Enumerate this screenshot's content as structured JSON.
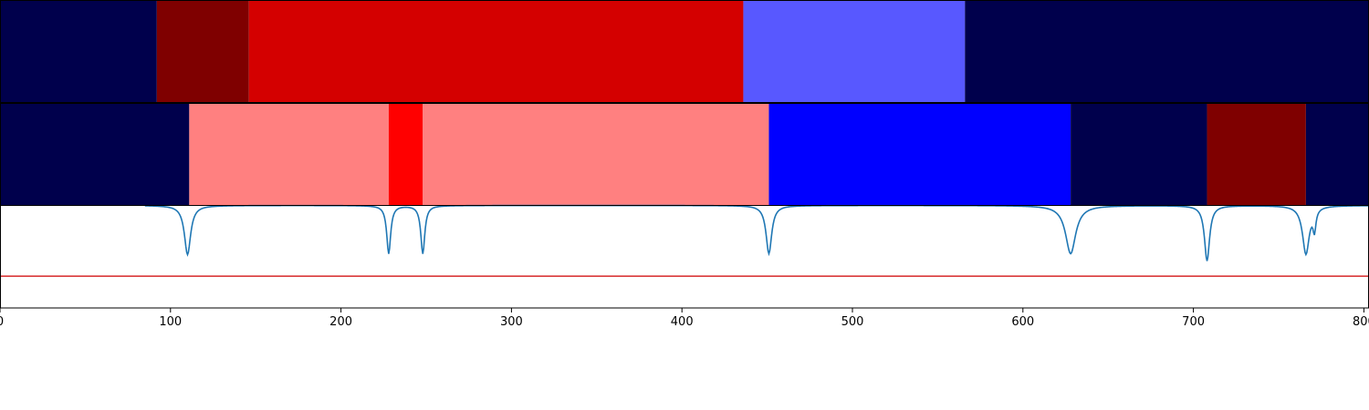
{
  "chart_data": {
    "type": "segment-timeline",
    "xlim": [
      0,
      803
    ],
    "x_ticks": [
      0,
      100,
      200,
      300,
      400,
      500,
      600,
      700,
      800
    ],
    "x_tick_labels": [
      "0",
      "100",
      "200",
      "300",
      "400",
      "500",
      "600",
      "700",
      "800"
    ],
    "panels": [
      {
        "kind": "segments",
        "segments": [
          {
            "start": 0,
            "end": 92,
            "color": "#00004c"
          },
          {
            "start": 92,
            "end": 146,
            "color": "#7f0000"
          },
          {
            "start": 146,
            "end": 436,
            "color": "#d40000"
          },
          {
            "start": 436,
            "end": 566,
            "color": "#5858ff"
          },
          {
            "start": 566,
            "end": 803,
            "color": "#00004c"
          }
        ]
      },
      {
        "kind": "segments",
        "segments": [
          {
            "start": 0,
            "end": 111,
            "color": "#00004c"
          },
          {
            "start": 111,
            "end": 228,
            "color": "#ff8080"
          },
          {
            "start": 228,
            "end": 248,
            "color": "#ff0000"
          },
          {
            "start": 248,
            "end": 451,
            "color": "#ff8080"
          },
          {
            "start": 451,
            "end": 628,
            "color": "#0000ff"
          },
          {
            "start": 628,
            "end": 708,
            "color": "#00004c"
          },
          {
            "start": 708,
            "end": 766,
            "color": "#7f0000"
          },
          {
            "start": 766,
            "end": 803,
            "color": "#00004c"
          }
        ]
      },
      {
        "kind": "line",
        "ylim": [
          0,
          1
        ],
        "line_color": "#1f77b4",
        "threshold": 0.31,
        "threshold_color": "#d62728",
        "baseline": 1.0,
        "start_x": 85,
        "dips": [
          {
            "x": 110,
            "min": 0.52,
            "width": 2.2
          },
          {
            "x": 228,
            "min": 0.53,
            "width": 1.4
          },
          {
            "x": 248,
            "min": 0.53,
            "width": 1.4
          },
          {
            "x": 451,
            "min": 0.53,
            "width": 2.0
          },
          {
            "x": 628,
            "min": 0.53,
            "width": 3.6
          },
          {
            "x": 708,
            "min": 0.46,
            "width": 1.8
          },
          {
            "x": 766,
            "min": 0.53,
            "width": 2.4
          },
          {
            "x": 771,
            "min": 0.8,
            "width": 1.0
          }
        ]
      }
    ]
  }
}
